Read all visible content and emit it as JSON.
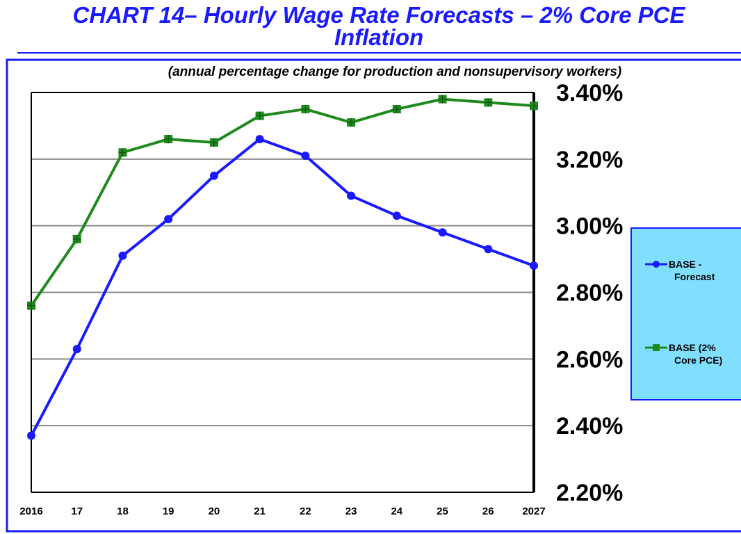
{
  "chart_data": {
    "type": "line",
    "title": "CHART 14– Hourly Wage Rate Forecasts – 2% Core PCE Inflation",
    "subtitle": "(annual percentage change for production and nonsupervisory workers)",
    "categories": [
      "2016",
      "17",
      "18",
      "19",
      "20",
      "21",
      "22",
      "23",
      "24",
      "25",
      "26",
      "2027"
    ],
    "series": [
      {
        "name": "BASE - Forecast",
        "color": "#1a1aff",
        "marker": "circle",
        "values": [
          2.37,
          2.63,
          2.91,
          3.02,
          3.15,
          3.26,
          3.21,
          3.09,
          3.03,
          2.98,
          2.93,
          2.88
        ]
      },
      {
        "name": "BASE (2% Core PCE)",
        "color": "#1e8a1e",
        "marker": "square",
        "values": [
          2.76,
          2.96,
          3.22,
          3.26,
          3.25,
          3.33,
          3.35,
          3.31,
          3.35,
          3.38,
          3.37,
          3.36
        ]
      }
    ],
    "ylim": [
      2.2,
      3.4
    ],
    "yticks": [
      {
        "value": 2.2,
        "label": "2.20%"
      },
      {
        "value": 2.4,
        "label": "2.40%"
      },
      {
        "value": 2.6,
        "label": "2.60%"
      },
      {
        "value": 2.8,
        "label": "2.80%"
      },
      {
        "value": 3.0,
        "label": "3.00%"
      },
      {
        "value": 3.2,
        "label": "3.20%"
      },
      {
        "value": 3.4,
        "label": "3.40%"
      }
    ],
    "grid": true,
    "legend": "right"
  }
}
